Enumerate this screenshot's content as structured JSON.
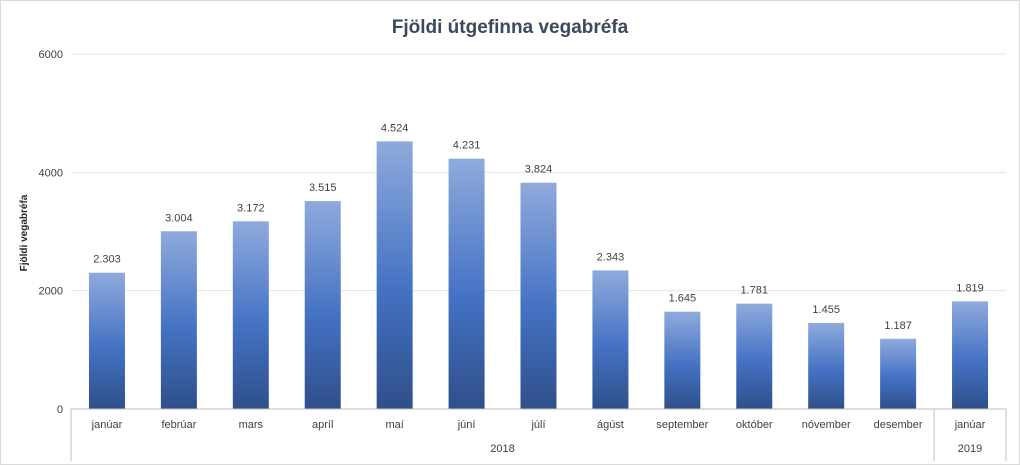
{
  "chart_data": {
    "type": "bar",
    "title": "Fjöldi útgefinna vegabréfa",
    "xlabel": "",
    "ylabel": "Fjöldi vegabréfa",
    "ylim": [
      0,
      6000
    ],
    "yticks": [
      "0",
      "2000",
      "4000",
      "6000"
    ],
    "grid": true,
    "legend": "none",
    "categories": [
      "janúar",
      "febrúar",
      "mars",
      "apríl",
      "maí",
      "júní",
      "júlí",
      "ágúst",
      "september",
      "október",
      "nóvember",
      "desember",
      "janúar"
    ],
    "values": [
      2303,
      3004,
      3172,
      3515,
      4524,
      4231,
      3824,
      2343,
      1645,
      1781,
      1455,
      1187,
      1819
    ],
    "data_labels": [
      "2.303",
      "3.004",
      "3.172",
      "3.515",
      "4.524",
      "4.231",
      "3.824",
      "2.343",
      "1.645",
      "1.781",
      "1.455",
      "1.187",
      "1.819"
    ],
    "groups": [
      {
        "label": "2018",
        "count": 12
      },
      {
        "label": "2019",
        "count": 1
      }
    ],
    "colors": {
      "bar_top": "#8faadc",
      "bar_mid": "#4472c4",
      "bar_bottom": "#2f4f8a"
    }
  }
}
